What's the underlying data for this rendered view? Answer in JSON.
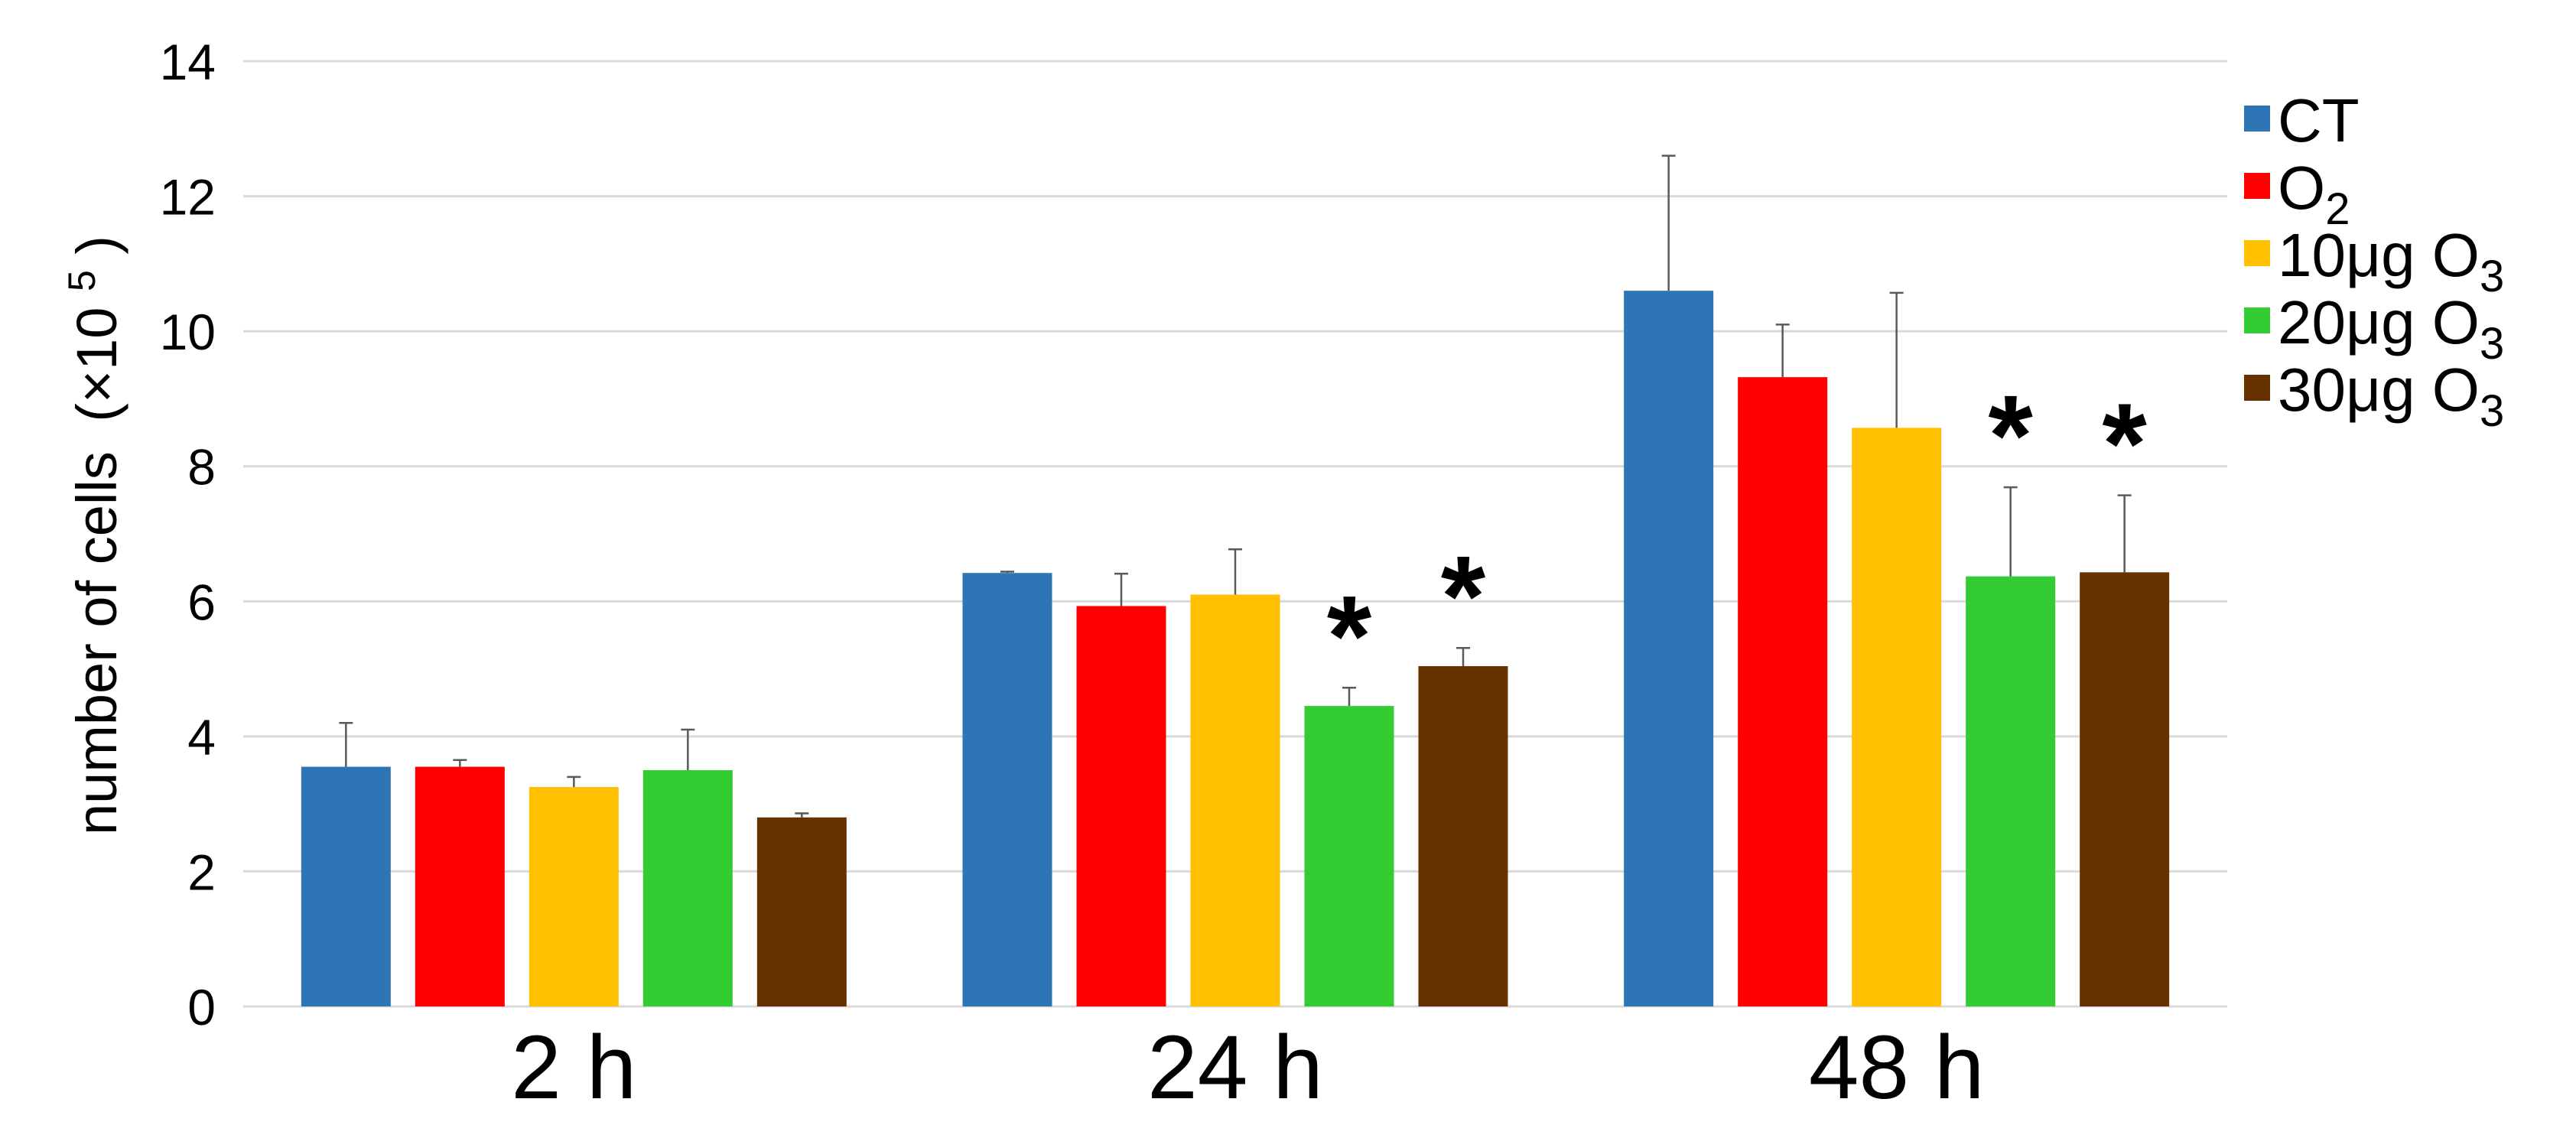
{
  "chart_data": {
    "type": "bar",
    "title": "",
    "xlabel": "",
    "ylabel": "number of cells",
    "ylabel_unit_prefix": "(×10",
    "ylabel_unit_exp": "5",
    "ylabel_unit_suffix": ")",
    "ylim": [
      0,
      14
    ],
    "yticks": [
      0,
      2,
      4,
      6,
      8,
      10,
      12,
      14
    ],
    "grid": true,
    "legend_position": "right",
    "categories": [
      "2 h",
      "24 h",
      "48 h"
    ],
    "series": [
      {
        "name": "CT",
        "color": "#2e75b6",
        "values": [
          3.55,
          6.42,
          10.6
        ],
        "errors": [
          0.65,
          0.02,
          2.0
        ],
        "significant": [
          false,
          false,
          false
        ]
      },
      {
        "name": "O2",
        "color": "#ff0000",
        "values": [
          3.55,
          5.93,
          9.32
        ],
        "errors": [
          0.1,
          0.48,
          0.78
        ],
        "significant": [
          false,
          false,
          false
        ]
      },
      {
        "name": "10μg O3",
        "color": "#ffc000",
        "values": [
          3.25,
          6.1,
          8.57
        ],
        "errors": [
          0.15,
          0.67,
          2.0
        ],
        "significant": [
          false,
          false,
          false
        ]
      },
      {
        "name": "20μg O3",
        "color": "#33cc33",
        "values": [
          3.5,
          4.45,
          6.37
        ],
        "errors": [
          0.6,
          0.27,
          1.32
        ],
        "significant": [
          false,
          true,
          true
        ]
      },
      {
        "name": "30μg O3",
        "color": "#663300",
        "values": [
          2.8,
          5.04,
          6.43
        ],
        "errors": [
          0.06,
          0.27,
          1.14
        ],
        "significant": [
          false,
          true,
          true
        ]
      }
    ],
    "legend_entries": [
      {
        "base": "CT",
        "sub": ""
      },
      {
        "base": "O",
        "sub": "2"
      },
      {
        "base": "10μg O",
        "sub": "3"
      },
      {
        "base": "20μg O",
        "sub": "3"
      },
      {
        "base": "30μg O",
        "sub": "3"
      }
    ],
    "significance_symbol": "*"
  }
}
